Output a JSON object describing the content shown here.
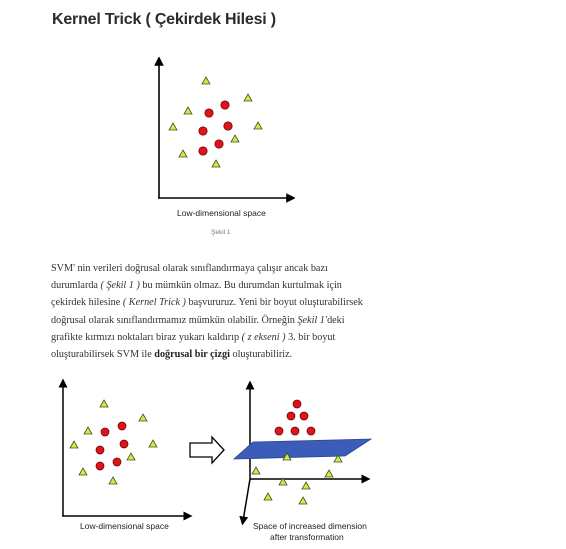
{
  "title": "Kernel Trick ( Çekirdek Hilesi )",
  "figure1": {
    "axis_label": "Low-dimensional space",
    "caption": "Şekil 1"
  },
  "paragraph": {
    "l1": "SVM' nin verileri doğrusal olarak sınıflandırmaya çalışır ancak bazı",
    "l2_a": "durumlarda ",
    "l2_ref": "( Şekil 1 )",
    "l2_b": " bu mümkün olmaz. Bu durumdan kurtulmak için",
    "l3_a": "çekirdek hilesine ",
    "l3_ref": "( Kernel Trick )",
    "l3_b": " başvururuz. Yeni bir boyut oluşturabilirsek",
    "l4": "doğrusal olarak sınıflandırmamız mümkün olabilir. Örneğin ",
    "l4_ref": "Şekil 1'",
    "l4_b": "deki",
    "l5_a": "grafikte kırmızı noktaları biraz yukarı kaldırıp ",
    "l5_ref": "( z ekseni )",
    "l5_b": " 3. bir boyut",
    "l6_a": "oluşturabilirsek SVM ile ",
    "l6_bold": "doğrusal bir çizgi",
    "l6_b": " oluşturabiliriz."
  },
  "figure2": {
    "left_label": "Low-dimensional space",
    "right_label_1": "Space of increased dimension",
    "right_label_2": "after transformation"
  },
  "colors": {
    "red_point": "#e0121a",
    "triangle_fill": "#d8e64a",
    "plane": "#3b5cb8"
  },
  "icons": {
    "arrow": "hollow-right-arrow-icon"
  }
}
